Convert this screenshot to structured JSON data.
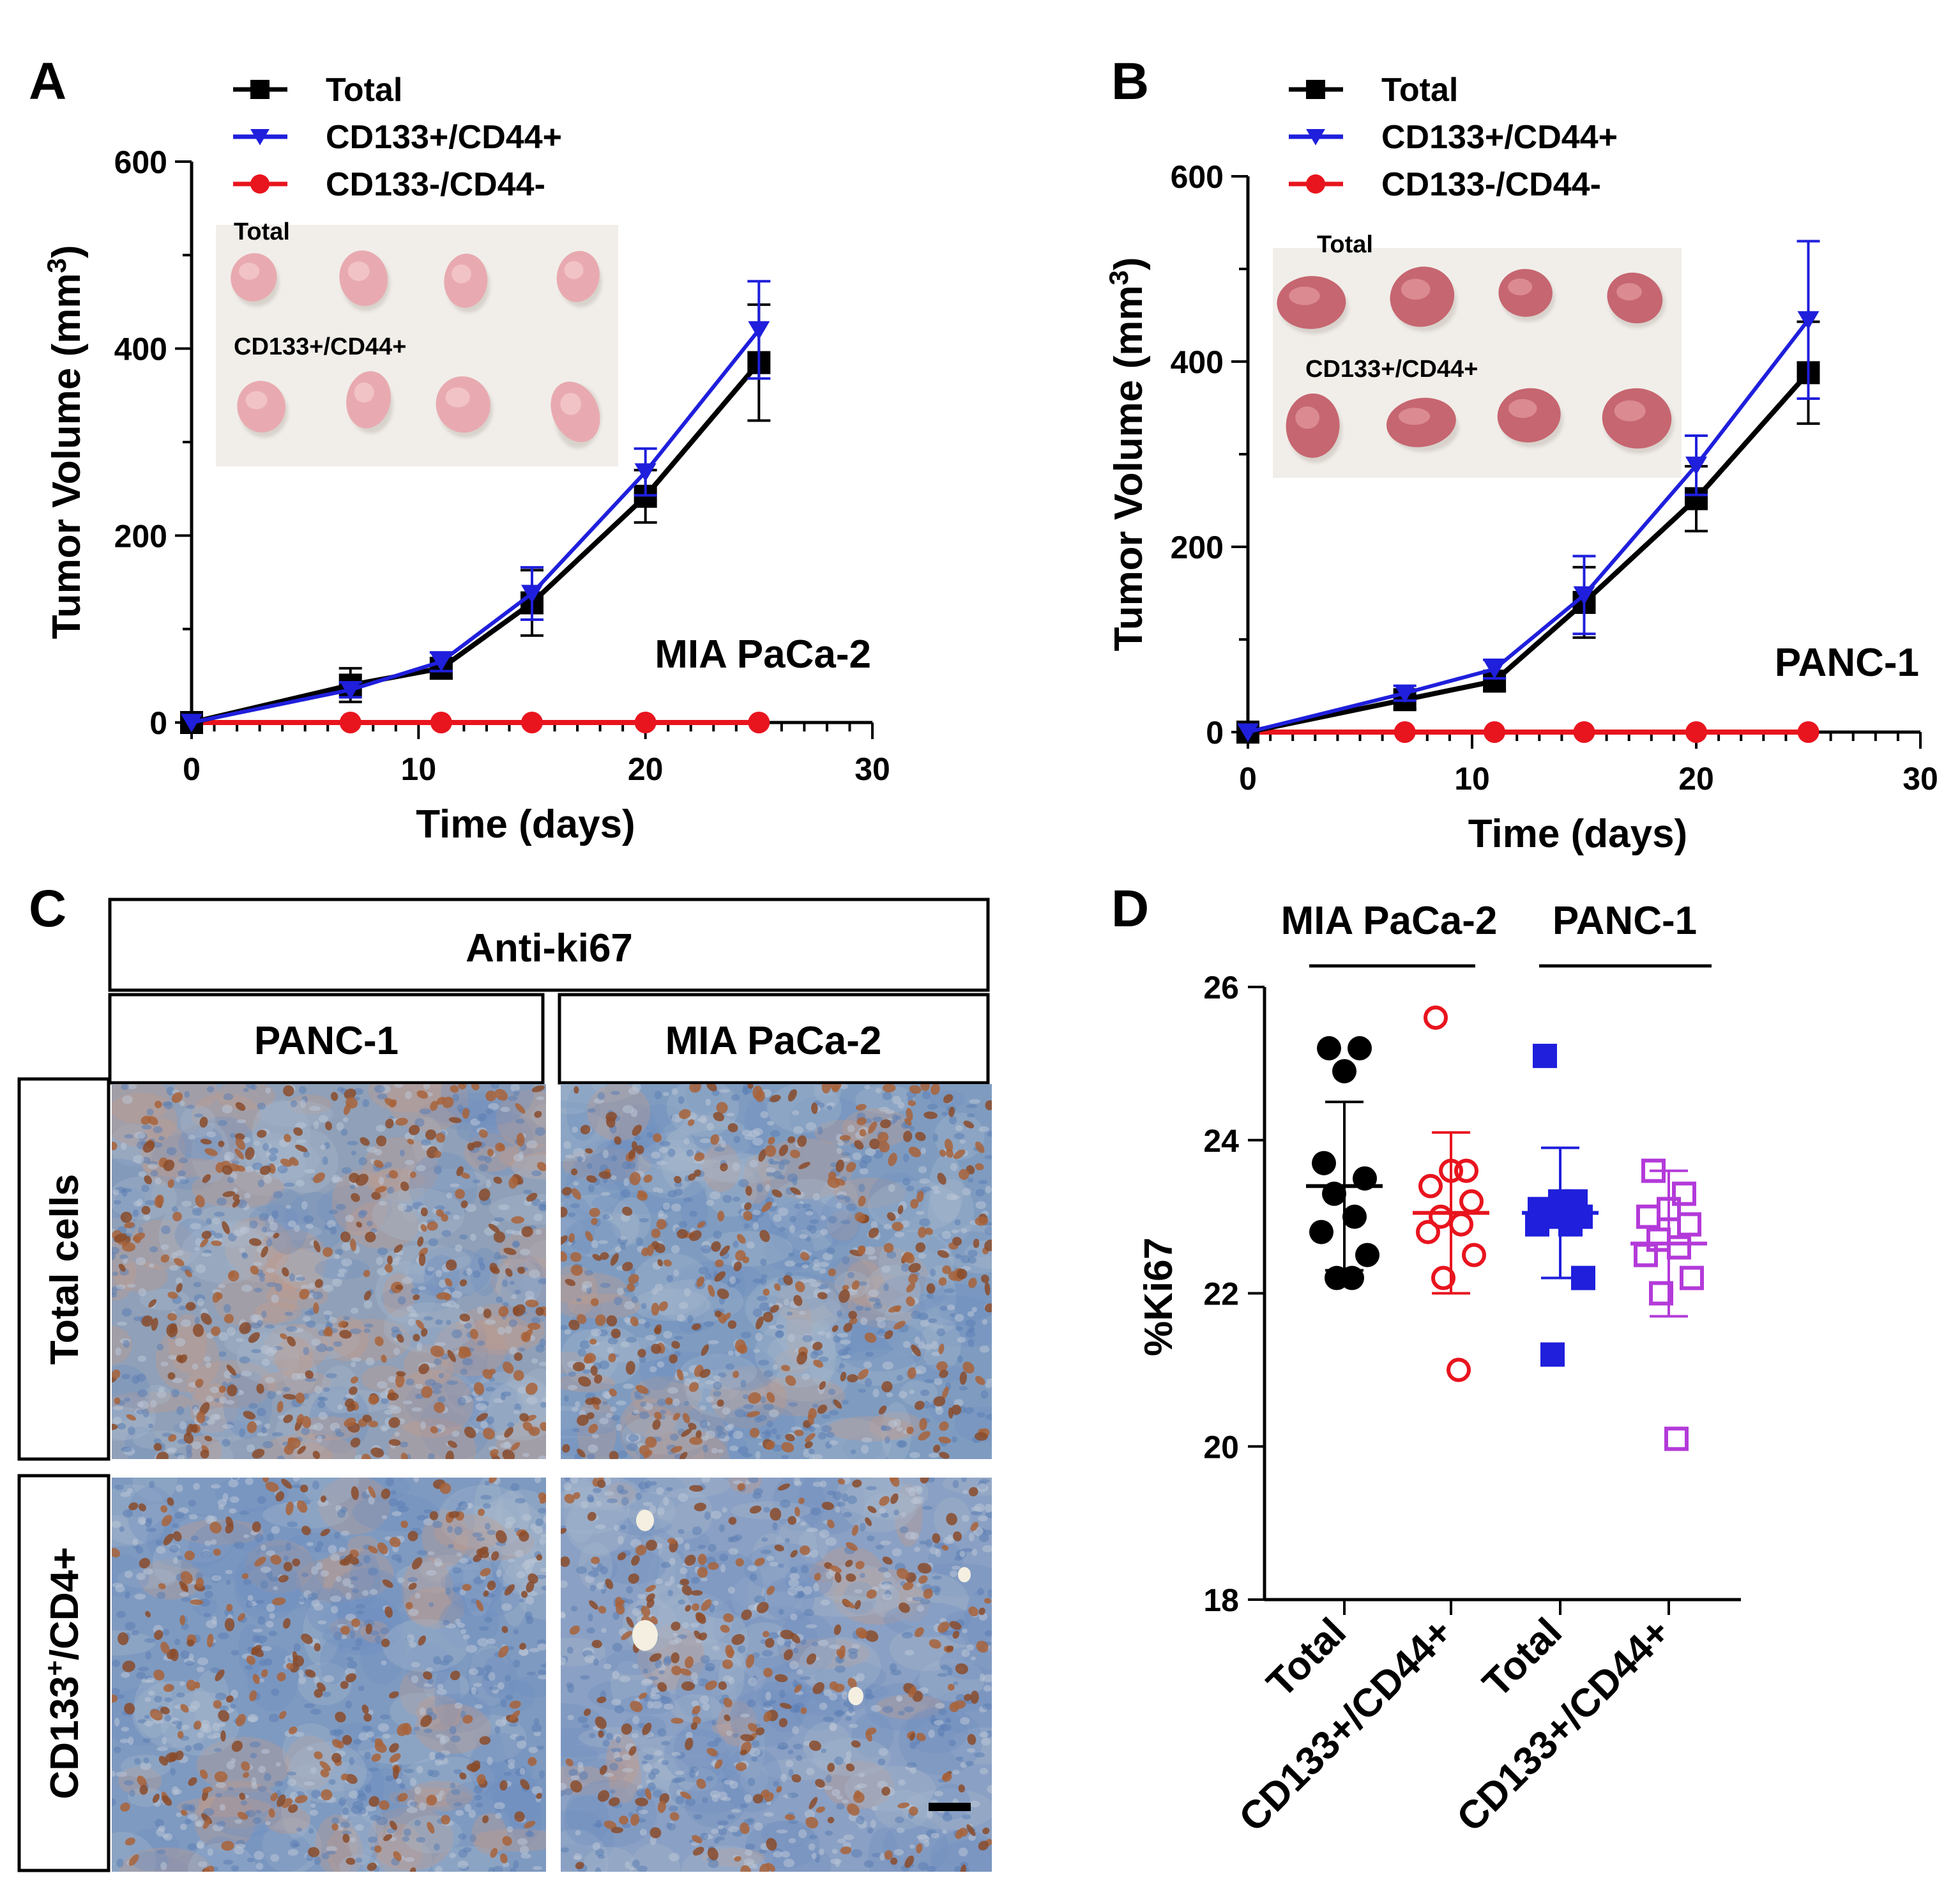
{
  "colors": {
    "total": "#000000",
    "cd133_pos": "#1f1fdc",
    "cd133_neg": "#e8141e",
    "ki67_mia_pos": "#e8141e",
    "ki67_panc_total": "#1f1fdc",
    "ki67_panc_pos": "#b33ad9"
  },
  "panelC": {
    "letter": "C",
    "header": "Anti-ki67",
    "columns": [
      "PANC-1",
      "MIA PaCa-2"
    ],
    "rows": [
      "Total cells",
      "CD133+/CD4+"
    ],
    "row2_main": "CD133",
    "row2_sup": "+",
    "row2_tail": "/CD4+"
  },
  "chart_data": [
    {
      "id": "A",
      "type": "line",
      "letter": "A",
      "title": "",
      "annotation": "MIA PaCa-2",
      "xlabel": "Time (days)",
      "ylabel_main": "Tumor Volume (mm",
      "ylabel_sup": "3",
      "ylabel_tail": ")",
      "xlim": [
        0,
        30
      ],
      "ylim": [
        0,
        600
      ],
      "xticks": [
        0,
        10,
        20,
        30
      ],
      "yticks": [
        0,
        200,
        400,
        600
      ],
      "legend": [
        "Total",
        "CD133+/CD44+",
        "CD133-/CD44-"
      ],
      "inset_labels": [
        "Total",
        "CD133+/CD44+"
      ],
      "series": [
        {
          "name": "Total",
          "marker": "square",
          "x": [
            0,
            7,
            11,
            15,
            20,
            25
          ],
          "y": [
            0,
            40,
            58,
            128,
            242,
            385
          ],
          "err": [
            0,
            18,
            10,
            35,
            28,
            62
          ]
        },
        {
          "name": "CD133+/CD44+",
          "marker": "triangle",
          "x": [
            0,
            7,
            11,
            15,
            20,
            25
          ],
          "y": [
            0,
            35,
            65,
            138,
            268,
            420
          ],
          "err": [
            0,
            8,
            10,
            28,
            25,
            52
          ]
        },
        {
          "name": "CD133-/CD44-",
          "marker": "circle",
          "x": [
            0,
            7,
            11,
            15,
            20,
            25
          ],
          "y": [
            0,
            0,
            0,
            0,
            0,
            0
          ],
          "err": [
            0,
            0,
            0,
            0,
            0,
            0
          ]
        }
      ]
    },
    {
      "id": "B",
      "type": "line",
      "letter": "B",
      "title": "",
      "annotation": "PANC-1",
      "xlabel": "Time (days)",
      "ylabel_main": "Tumor Volume (mm",
      "ylabel_sup": "3",
      "ylabel_tail": ")",
      "xlim": [
        0,
        30
      ],
      "ylim": [
        0,
        600
      ],
      "xticks": [
        0,
        10,
        20,
        30
      ],
      "yticks": [
        0,
        200,
        400,
        600
      ],
      "legend": [
        "Total",
        "CD133+/CD44+",
        "CD133-/CD44-"
      ],
      "inset_labels": [
        "Total",
        "CD133+/CD44+"
      ],
      "series": [
        {
          "name": "Total",
          "marker": "square",
          "x": [
            0,
            7,
            11,
            15,
            20,
            25
          ],
          "y": [
            0,
            35,
            55,
            140,
            252,
            388
          ],
          "err": [
            0,
            10,
            10,
            38,
            35,
            55
          ]
        },
        {
          "name": "CD133+/CD44+",
          "marker": "triangle",
          "x": [
            0,
            7,
            11,
            15,
            20,
            25
          ],
          "y": [
            0,
            42,
            68,
            148,
            288,
            445
          ],
          "err": [
            0,
            8,
            10,
            42,
            32,
            85
          ]
        },
        {
          "name": "CD133-/CD44-",
          "marker": "circle",
          "x": [
            0,
            7,
            11,
            15,
            20,
            25
          ],
          "y": [
            0,
            0,
            0,
            0,
            0,
            0
          ],
          "err": [
            0,
            0,
            0,
            0,
            0,
            0
          ]
        }
      ]
    },
    {
      "id": "D",
      "type": "scatter",
      "letter": "D",
      "ylabel": "%Ki67",
      "ylim": [
        18,
        26
      ],
      "yticks": [
        18,
        20,
        22,
        24,
        26
      ],
      "group_labels": [
        "MIA PaCa-2",
        "PANC-1"
      ],
      "categories": [
        "Total",
        "CD133+/CD44+",
        "Total",
        "CD133+/CD44+"
      ],
      "series": [
        {
          "name": "MIA PaCa-2 Total",
          "marker": "filled-circle",
          "mean": 23.4,
          "sd": 1.1,
          "values": [
            25.2,
            25.2,
            24.9,
            23.7,
            23.5,
            23.3,
            23.0,
            22.8,
            22.5,
            22.2,
            22.2
          ]
        },
        {
          "name": "MIA PaCa-2 CD133+/CD44+",
          "marker": "open-circle",
          "mean": 23.05,
          "sd": 1.05,
          "values": [
            25.6,
            23.6,
            23.6,
            23.4,
            23.2,
            23.0,
            22.9,
            22.8,
            22.5,
            22.2,
            21.0
          ]
        },
        {
          "name": "PANC-1 Total",
          "marker": "filled-square",
          "mean": 23.05,
          "sd": 0.85,
          "values": [
            25.1,
            23.2,
            23.2,
            23.1,
            23.0,
            23.0,
            22.9,
            22.9,
            22.2,
            21.2
          ]
        },
        {
          "name": "PANC-1 CD133+/CD44+",
          "marker": "open-square",
          "mean": 22.65,
          "sd": 0.95,
          "values": [
            23.6,
            23.3,
            23.1,
            23.0,
            22.9,
            22.7,
            22.6,
            22.5,
            22.2,
            22.0,
            20.1
          ]
        }
      ]
    }
  ]
}
